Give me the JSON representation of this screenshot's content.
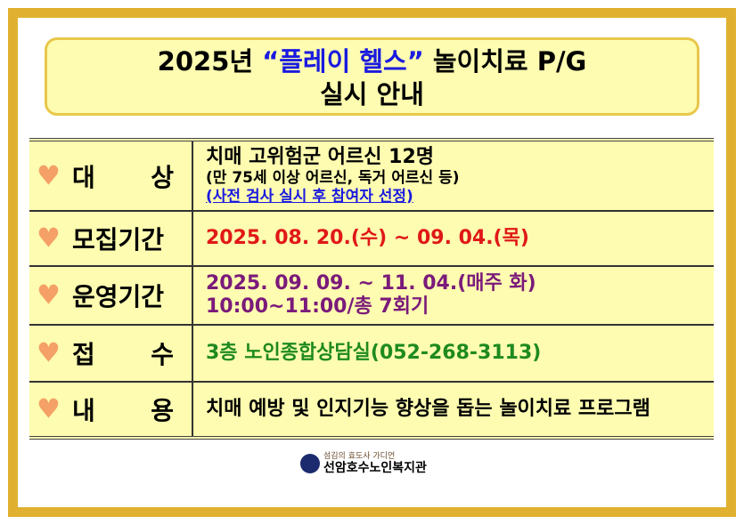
{
  "title": {
    "line1_prefix": "2025년 ",
    "line1_quote": "“플레이 헬스”",
    "line1_suffix": " 놀이치료 P/G",
    "line2": "실시 안내"
  },
  "rows": [
    {
      "label_a": "대",
      "label_b": "상",
      "lines": [
        "치매 고위험군 어르신 12명",
        "(만 75세 이상 어르신, 독거 어르신 등)",
        "(사전 검사 실시 후 참여자 선정)"
      ]
    },
    {
      "label": "모집기간",
      "lines": [
        "2025. 08. 20.(수) ~ 09. 04.(목)"
      ]
    },
    {
      "label": "운영기간",
      "lines": [
        "2025. 09. 09. ~ 11. 04.(매주 화)",
        "10:00~11:00/총 7회기"
      ]
    },
    {
      "label_a": "접",
      "label_b": "수",
      "lines": [
        "3층 노인종합상담실(052-268-3113)"
      ]
    },
    {
      "label_a": "내",
      "label_b": "용",
      "lines": [
        "치매 예방 및 인지기능 향상을 돕는 놀이치료 프로그램"
      ]
    }
  ],
  "icons": {
    "bullet": "heart-icon"
  },
  "colors": {
    "heart": "#f5a066",
    "red": "#e01818",
    "purple": "#7a1a7a",
    "green": "#1f8a1f",
    "blue": "#1a1ae0",
    "frame": "#e0b030",
    "fill": "#fdfcb0"
  },
  "footer": {
    "tagline": "섬김의 효도사 가디언",
    "org": "선암호수노인복지관"
  }
}
